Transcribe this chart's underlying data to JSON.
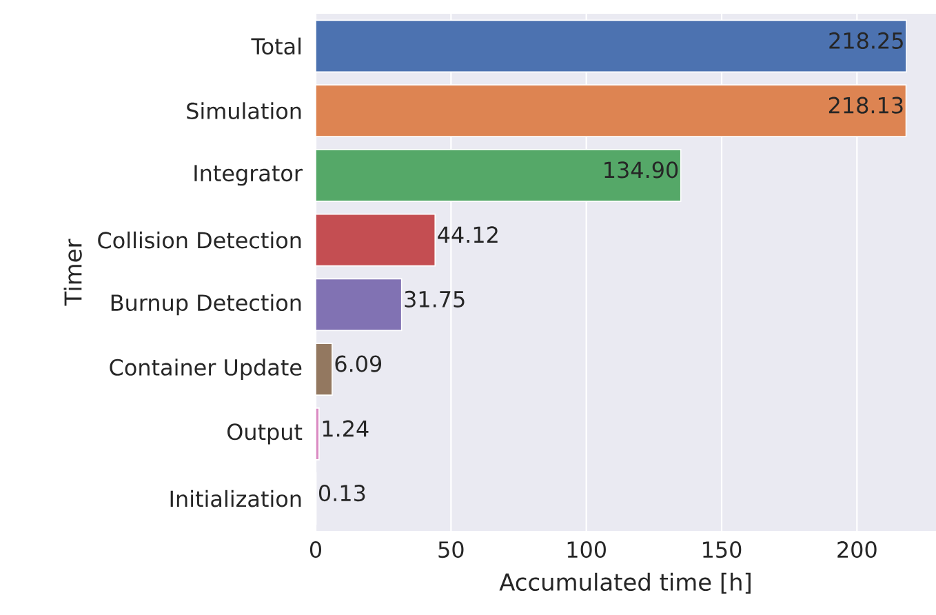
{
  "chart_data": {
    "type": "bar",
    "orientation": "horizontal",
    "xlabel": "Accumulated time [h]",
    "ylabel": "Timer",
    "categories": [
      "Total",
      "Simulation",
      "Integrator",
      "Collision Detection",
      "Burnup Detection",
      "Container Update",
      "Output",
      "Initialization"
    ],
    "values": [
      218.25,
      218.13,
      134.9,
      44.12,
      31.75,
      6.09,
      1.24,
      0.13
    ],
    "colors": [
      "#4c72b0",
      "#dd8452",
      "#55a868",
      "#c44e52",
      "#8172b3",
      "#937860",
      "#da8bc3",
      "#8c8c8c"
    ],
    "value_labels": [
      "218.25",
      "218.13",
      "134.90",
      "44.12",
      "31.75",
      "6.09",
      "1.24",
      "0.13"
    ],
    "xlim": [
      0,
      229.2
    ],
    "xticks": [
      0,
      50,
      100,
      150,
      200
    ],
    "grid": "x"
  }
}
